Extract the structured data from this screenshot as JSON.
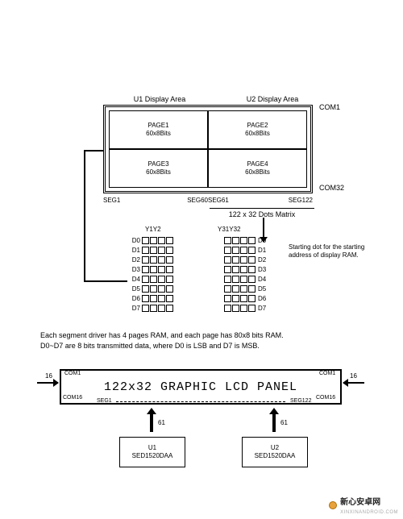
{
  "displayArea": {
    "u1Label": "U1 Display Area",
    "u2Label": "U2 Display Area",
    "com1": "COM1",
    "com32": "COM32",
    "seg1": "SEG1",
    "seg60": "SEG60",
    "seg61": "SEG61",
    "seg122": "SEG122",
    "dotMatrix": "122 x 32 Dots Matrix",
    "pages": [
      {
        "title": "PAGE1",
        "sub": "60x8Bits"
      },
      {
        "title": "PAGE2",
        "sub": "60x8Bits"
      },
      {
        "title": "PAGE3",
        "sub": "60x8Bits"
      },
      {
        "title": "PAGE4",
        "sub": "60x8Bits"
      }
    ]
  },
  "bitTable": {
    "yLeft": "Y1Y2",
    "yRight": "Y31Y32",
    "rows": [
      "D0",
      "D1",
      "D2",
      "D3",
      "D4",
      "D5",
      "D6",
      "D7"
    ],
    "squaresPerRow": 4,
    "note": "Starting dot for the starting address of display RAM."
  },
  "bodyText": {
    "line1": "Each segment driver has 4 pages RAM, and each page has 80x8 bits RAM.",
    "line2": "D0~D7 are 8 bits transmitted data, where D0 is LSB and D7 is MSB."
  },
  "panel": {
    "title": "122x32 GRAPHIC LCD PANEL",
    "com1": "COM1",
    "com16": "COM16",
    "seg1": "SEG1",
    "seg122": "SEG122",
    "sideNum": "16",
    "upNum": "61",
    "u1": {
      "name": "U1",
      "chip": "SED1520DAA"
    },
    "u2": {
      "name": "U2",
      "chip": "SED1520DAA"
    }
  },
  "watermark": {
    "cn": "新心安卓网",
    "sub": "XINXINANDROID.COM"
  },
  "style": {
    "bg": "#ffffff",
    "line": "#000000",
    "fontSmall": 8,
    "fontPanel": 15,
    "panelFont": "Courier New"
  }
}
